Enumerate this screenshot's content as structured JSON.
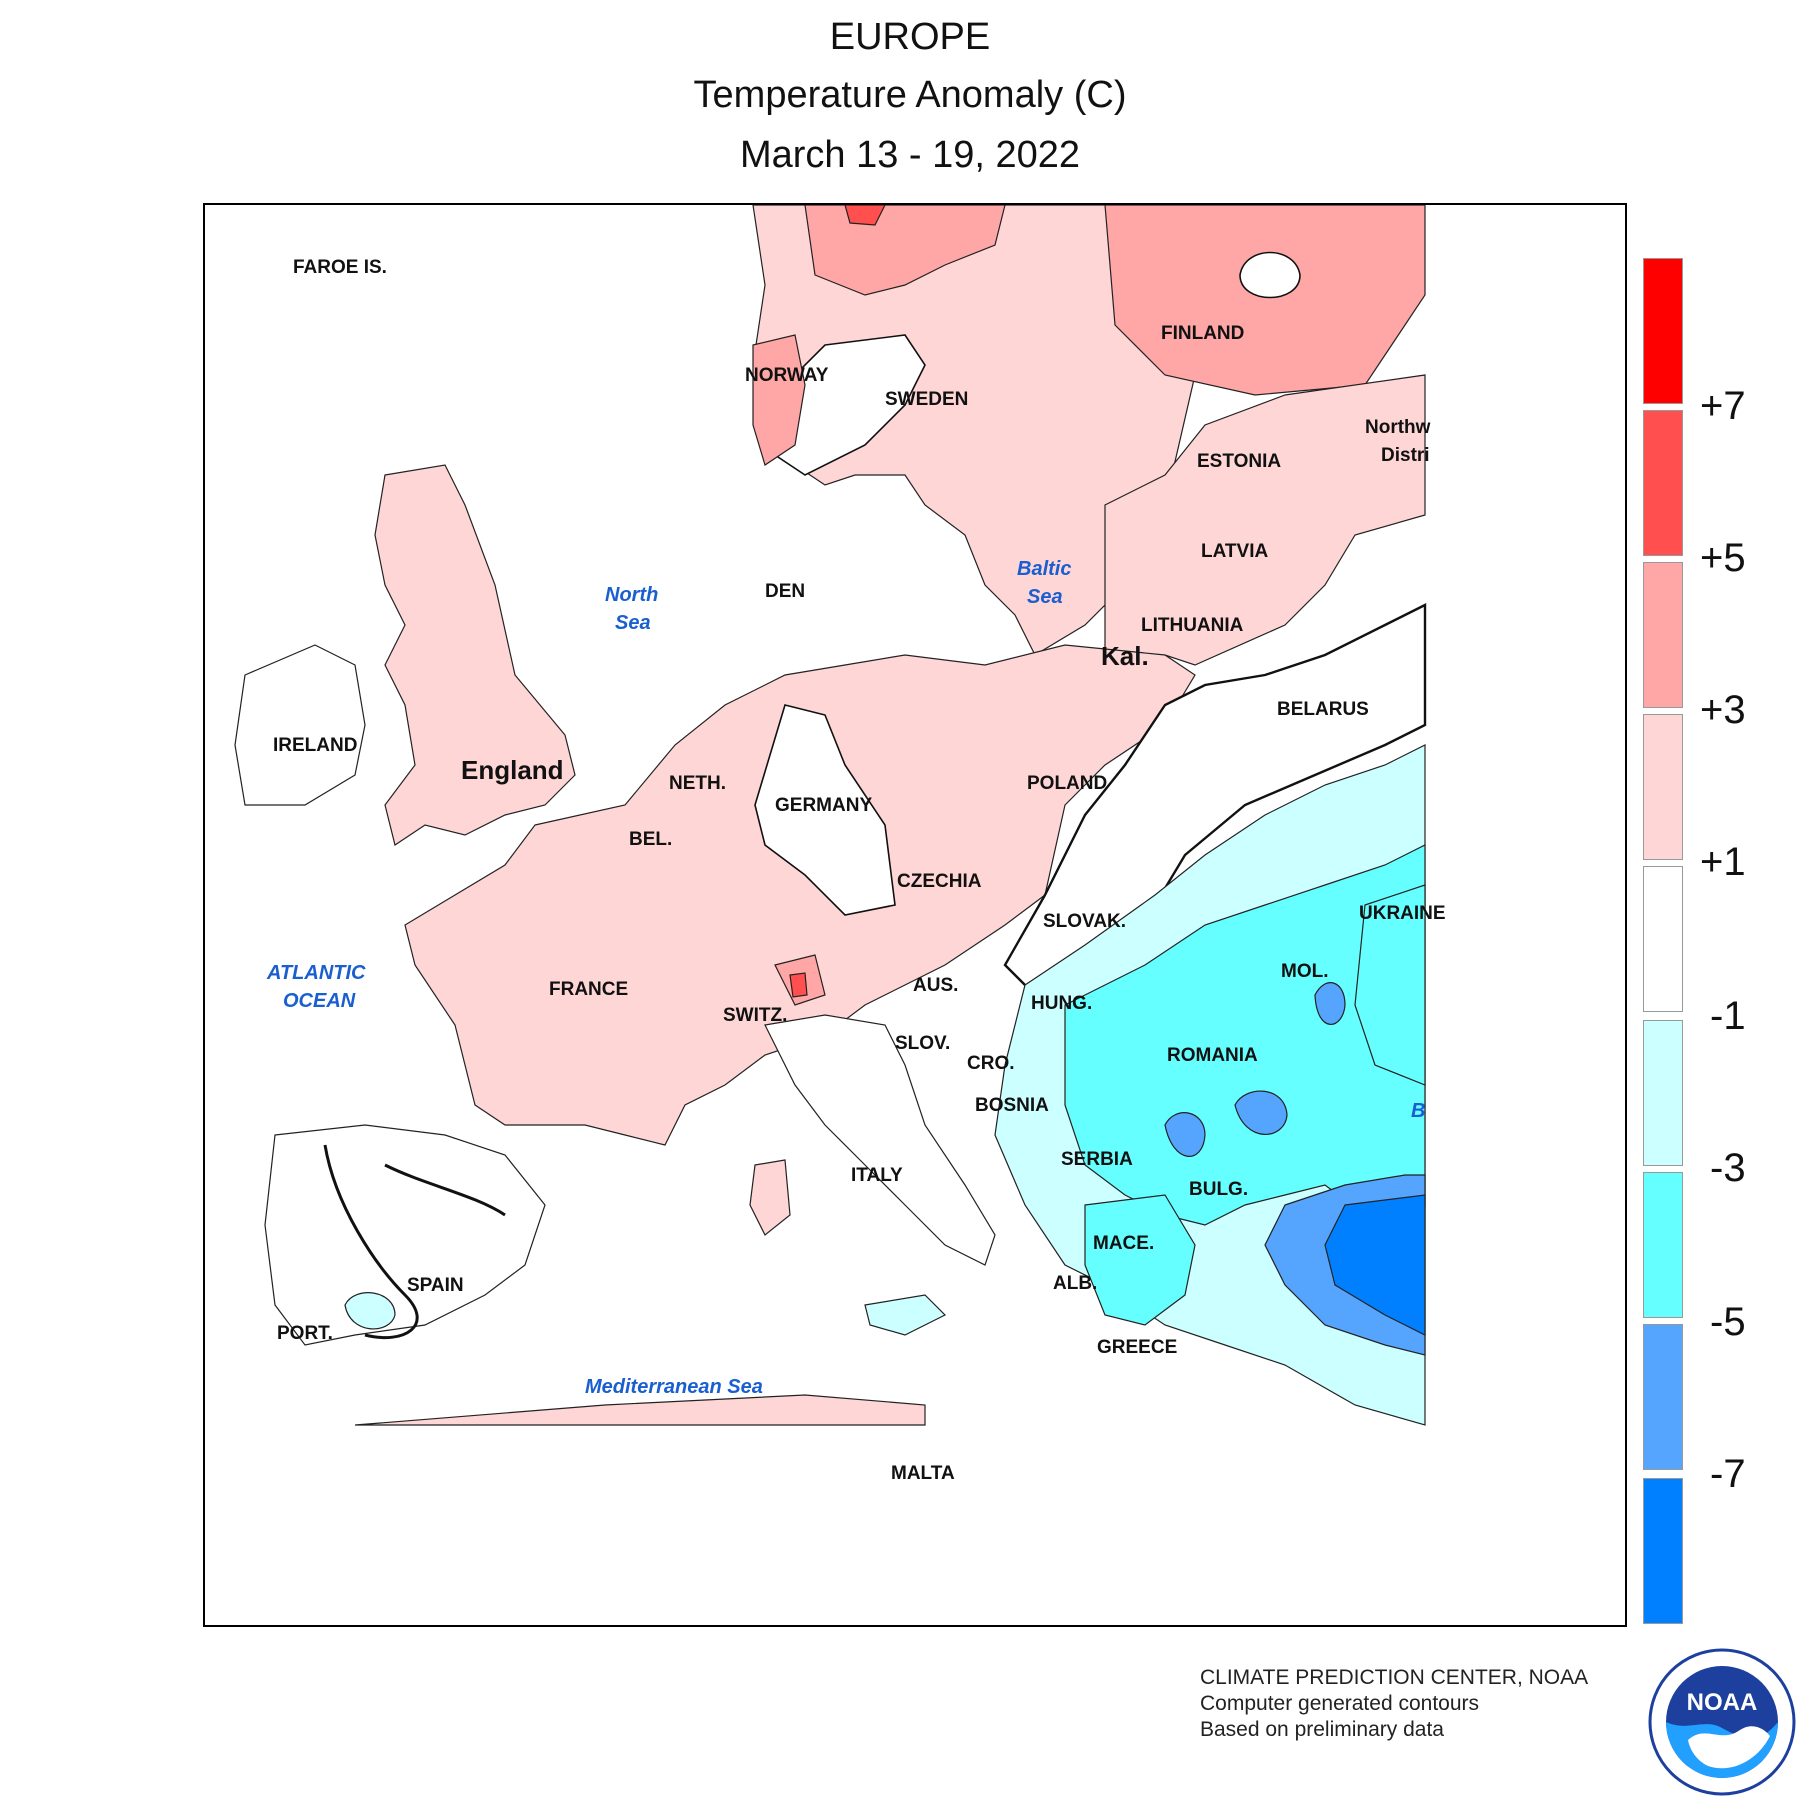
{
  "title": {
    "region": "EUROPE",
    "measure": "Temperature Anomaly (C)",
    "period": "March 13 - 19, 2022"
  },
  "legend": {
    "colors": [
      "#ff0000",
      "#ff4f4f",
      "#ffa6a6",
      "#ffd6d6",
      "#ffffff",
      "#ccffff",
      "#66ffff",
      "#55a5ff",
      "#0080ff"
    ],
    "ticks": [
      "+7",
      "+5",
      "+3",
      "+1",
      "-1",
      "-3",
      "-5",
      "-7"
    ]
  },
  "labels": {
    "faroe": "FAROE IS.",
    "norway": "NORWAY",
    "sweden": "SWEDEN",
    "finland": "FINLAND",
    "estonia": "ESTONIA",
    "latvia": "LATVIA",
    "lithuania": "LITHUANIA",
    "kal": "Kal.",
    "belarus": "BELARUS",
    "northwest": "Northw",
    "district": "Distri",
    "den": "DEN",
    "ireland": "IRELAND",
    "england": "England",
    "neth": "NETH.",
    "bel": "BEL.",
    "germany": "GERMANY",
    "poland": "POLAND",
    "czechia": "CZECHIA",
    "slovak": "SLOVAK.",
    "ukraine": "UKRAINE",
    "france": "FRANCE",
    "switz": "SWITZ.",
    "aus": "AUS.",
    "hung": "HUNG.",
    "mol": "MOL.",
    "romania": "ROMANIA",
    "slov": "SLOV.",
    "cro": "CRO.",
    "bosnia": "BOSNIA",
    "serbia": "SERBIA",
    "bulg": "BULG.",
    "mace": "MACE.",
    "alb": "ALB.",
    "greece": "GREECE",
    "italy": "ITALY",
    "spain": "SPAIN",
    "port": "PORT.",
    "malta": "MALTA"
  },
  "seas": {
    "north_1": "North",
    "north_2": "Sea",
    "baltic_1": "Baltic",
    "baltic_2": "Sea",
    "atlantic_1": "ATLANTIC",
    "atlantic_2": "OCEAN",
    "med": "Mediterranean Sea",
    "black": "B"
  },
  "credits": {
    "line1": "CLIMATE PREDICTION CENTER, NOAA",
    "line2": "Computer generated contours",
    "line3": "Based on preliminary data"
  },
  "logo": {
    "text": "NOAA"
  }
}
